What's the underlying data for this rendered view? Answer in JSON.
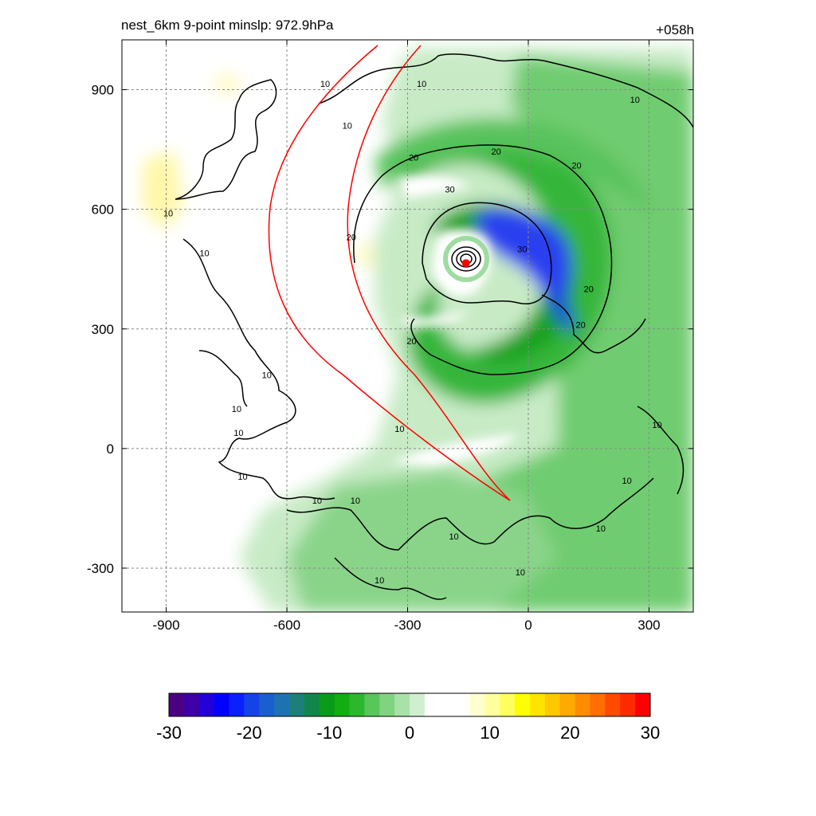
{
  "chart_data": [
    {
      "type": "heatmap",
      "title": "nest_6km  9-point minslp: 972.9hPa",
      "subtitle_right": "+058h",
      "xlabel": "",
      "ylabel": "",
      "xlim": [
        -1010,
        410
      ],
      "ylim": [
        -410,
        1025
      ],
      "xticks": [
        -900,
        -600,
        -300,
        0,
        300
      ],
      "yticks": [
        -300,
        0,
        300,
        600,
        900
      ],
      "xtick_labels": [
        "-900",
        "-600",
        "-300",
        "0",
        "300"
      ],
      "ytick_labels": [
        "-300",
        "0",
        "300",
        "600",
        "900"
      ],
      "grid": true,
      "storm_center": {
        "x": -155,
        "y": 465
      },
      "contour_labels": [
        {
          "text": "10",
          "x": -895,
          "y": 590
        },
        {
          "text": "10",
          "x": -805,
          "y": 490
        },
        {
          "text": "10",
          "x": -650,
          "y": 185
        },
        {
          "text": "10",
          "x": -725,
          "y": 100
        },
        {
          "text": "10",
          "x": -720,
          "y": 40
        },
        {
          "text": "10",
          "x": -710,
          "y": -70
        },
        {
          "text": "10",
          "x": -525,
          "y": -130
        },
        {
          "text": "10",
          "x": -430,
          "y": -130
        },
        {
          "text": "10",
          "x": -370,
          "y": -330
        },
        {
          "text": "10",
          "x": -185,
          "y": -220
        },
        {
          "text": "10",
          "x": -20,
          "y": -310
        },
        {
          "text": "10",
          "x": 180,
          "y": -200
        },
        {
          "text": "10",
          "x": 245,
          "y": -80
        },
        {
          "text": "10",
          "x": 320,
          "y": 60
        },
        {
          "text": "10",
          "x": -320,
          "y": 50
        },
        {
          "text": "10",
          "x": -505,
          "y": 915
        },
        {
          "text": "10",
          "x": -450,
          "y": 810
        },
        {
          "text": "10",
          "x": -265,
          "y": 915
        },
        {
          "text": "10",
          "x": 265,
          "y": 875
        },
        {
          "text": "20",
          "x": -440,
          "y": 530
        },
        {
          "text": "20",
          "x": -290,
          "y": 270
        },
        {
          "text": "20",
          "x": -285,
          "y": 730
        },
        {
          "text": "20",
          "x": -80,
          "y": 745
        },
        {
          "text": "20",
          "x": 120,
          "y": 710
        },
        {
          "text": "20",
          "x": 130,
          "y": 310
        },
        {
          "text": "20",
          "x": 150,
          "y": 400
        },
        {
          "text": "30",
          "x": -195,
          "y": 650
        },
        {
          "text": "30",
          "x": -15,
          "y": 500
        }
      ]
    },
    {
      "type": "colorbar",
      "tick_labels": [
        "-30",
        "-20",
        "-10",
        "0",
        "10",
        "20",
        "30"
      ],
      "min": -30,
      "max": 30,
      "step": 2.5,
      "colors": [
        "#4b0080",
        "#3e00a6",
        "#2200d6",
        "#0000ff",
        "#0a20ff",
        "#1444e8",
        "#1a5fcf",
        "#1e72b0",
        "#1c7f7a",
        "#12864a",
        "#0a9a1a",
        "#11ad11",
        "#2db72d",
        "#58c658",
        "#80d480",
        "#a8e2a8",
        "#cfefcf",
        "#ffffff",
        "#ffffff",
        "#ffffff",
        "#ffffd0",
        "#ffffa0",
        "#ffff60",
        "#ffff00",
        "#ffe400",
        "#ffc800",
        "#ffaa00",
        "#ff8c00",
        "#ff6e00",
        "#ff4a00",
        "#ff2a00",
        "#ff0000"
      ]
    }
  ]
}
